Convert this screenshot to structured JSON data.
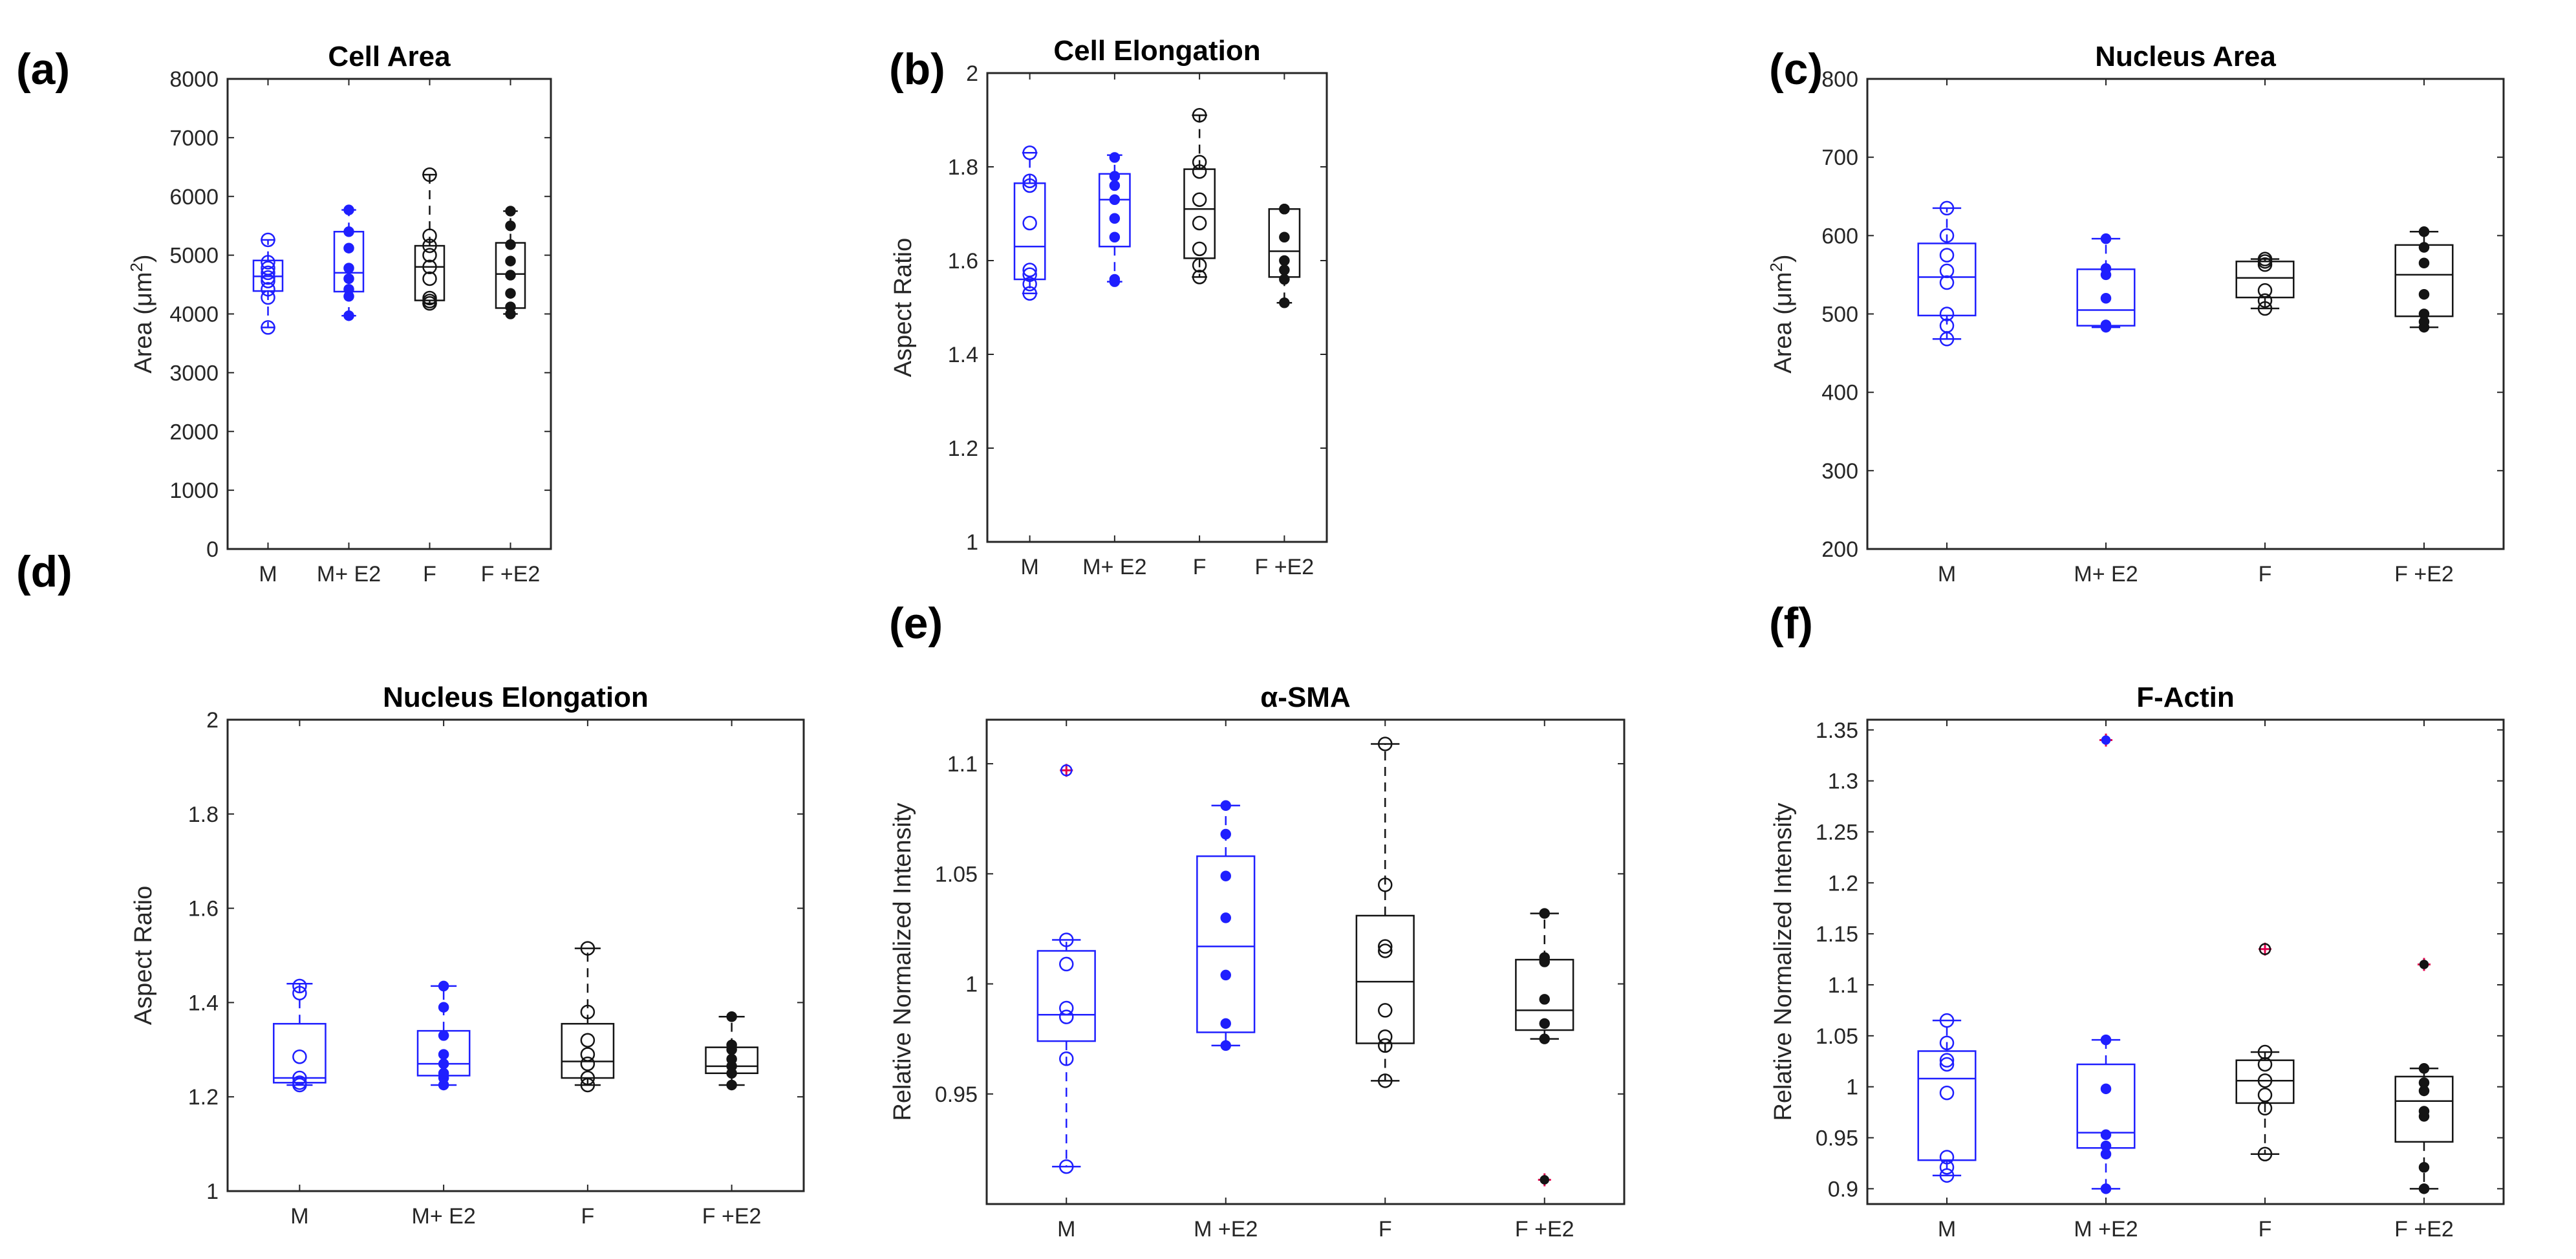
{
  "colors": {
    "blue": "#1f1fff",
    "black": "#141414",
    "outlier": "#e0004d",
    "axis": "#262626"
  },
  "panels": [
    {
      "label": "(a)",
      "chart_data": {
        "type": "box",
        "title": "Cell Area",
        "ylabel_main": "Area (μm",
        "ylabel_sup": "2",
        "ylabel_tail": ")",
        "ylim": [
          0,
          8000
        ],
        "yticks": [
          0,
          1000,
          2000,
          3000,
          4000,
          5000,
          6000,
          7000,
          8000
        ],
        "ytick_labels": [
          "0",
          "1000",
          "2000",
          "3000",
          "4000",
          "5000",
          "6000",
          "7000",
          "8000"
        ],
        "categories": [
          "M",
          "M+ E2",
          "F",
          "F +E2"
        ],
        "groups": [
          {
            "name": "M",
            "color": "blue",
            "filled": false,
            "q1": 4390,
            "median": 4640,
            "q3": 4910,
            "wlo": 3770,
            "whi": 5260,
            "points": [
              3770,
              4280,
              4420,
              4560,
              4620,
              4700,
              4780,
              4880,
              5260
            ],
            "outliers": []
          },
          {
            "name": "M+ E2",
            "color": "blue",
            "filled": true,
            "q1": 4380,
            "median": 4700,
            "q3": 5400,
            "wlo": 3970,
            "whi": 5770,
            "points": [
              3970,
              4300,
              4420,
              4600,
              4780,
              5120,
              5400,
              5770
            ],
            "outliers": []
          },
          {
            "name": "F",
            "color": "black",
            "filled": false,
            "q1": 4230,
            "median": 4800,
            "q3": 5160,
            "wlo": 4180,
            "whi": 6370,
            "points": [
              4180,
              4220,
              4270,
              4600,
              4800,
              5000,
              5160,
              5330,
              6370
            ],
            "outliers": []
          },
          {
            "name": "F +E2",
            "color": "black",
            "filled": true,
            "q1": 4100,
            "median": 4680,
            "q3": 5210,
            "wlo": 4000,
            "whi": 5750,
            "points": [
              4000,
              4120,
              4350,
              4660,
              4900,
              5180,
              5500,
              5750
            ],
            "outliers": []
          }
        ]
      }
    },
    {
      "label": "(b)",
      "chart_data": {
        "type": "box",
        "title": "Cell Elongation",
        "ylabel_main": "Aspect Ratio",
        "ylabel_sup": "",
        "ylabel_tail": "",
        "ylim": [
          1,
          2
        ],
        "yticks": [
          1,
          1.2,
          1.4,
          1.6,
          1.8,
          2
        ],
        "ytick_labels": [
          "1",
          "1.2",
          "1.4",
          "1.6",
          "1.8",
          "2"
        ],
        "categories": [
          "M",
          "M+ E2",
          "F",
          "F +E2"
        ],
        "groups": [
          {
            "name": "M",
            "color": "blue",
            "filled": false,
            "q1": 1.56,
            "median": 1.63,
            "q3": 1.765,
            "wlo": 1.53,
            "whi": 1.83,
            "points": [
              1.53,
              1.55,
              1.57,
              1.58,
              1.68,
              1.76,
              1.77,
              1.83
            ],
            "outliers": []
          },
          {
            "name": "M+ E2",
            "color": "blue",
            "filled": true,
            "q1": 1.63,
            "median": 1.73,
            "q3": 1.785,
            "wlo": 1.555,
            "whi": 1.825,
            "points": [
              1.555,
              1.56,
              1.65,
              1.69,
              1.73,
              1.76,
              1.78,
              1.82
            ],
            "outliers": []
          },
          {
            "name": "F",
            "color": "black",
            "filled": false,
            "q1": 1.605,
            "median": 1.71,
            "q3": 1.795,
            "wlo": 1.565,
            "whi": 1.91,
            "points": [
              1.565,
              1.59,
              1.625,
              1.68,
              1.73,
              1.79,
              1.81,
              1.91
            ],
            "outliers": []
          },
          {
            "name": "F +E2",
            "color": "black",
            "filled": true,
            "q1": 1.565,
            "median": 1.62,
            "q3": 1.71,
            "wlo": 1.51,
            "whi": 1.71,
            "points": [
              1.51,
              1.56,
              1.58,
              1.6,
              1.65,
              1.71,
              1.71
            ],
            "outliers": []
          }
        ]
      }
    },
    {
      "label": "(c)",
      "chart_data": {
        "type": "box",
        "title": "Nucleus Area",
        "ylabel_main": "Area (μm",
        "ylabel_sup": "2",
        "ylabel_tail": ")",
        "ylim": [
          200,
          800
        ],
        "yticks": [
          200,
          300,
          400,
          500,
          600,
          700,
          800
        ],
        "ytick_labels": [
          "200",
          "300",
          "400",
          "500",
          "600",
          "700",
          "800"
        ],
        "categories": [
          "M",
          "M+ E2",
          "F",
          "F +E2"
        ],
        "groups": [
          {
            "name": "M",
            "color": "blue",
            "filled": false,
            "q1": 498,
            "median": 547,
            "q3": 590,
            "wlo": 468,
            "whi": 635,
            "points": [
              468,
              485,
              500,
              540,
              555,
              575,
              600,
              635
            ],
            "outliers": []
          },
          {
            "name": "M+ E2",
            "color": "blue",
            "filled": true,
            "q1": 485,
            "median": 505,
            "q3": 557,
            "wlo": 483,
            "whi": 596,
            "points": [
              483,
              486,
              520,
              550,
              558,
              596
            ],
            "outliers": []
          },
          {
            "name": "F",
            "color": "black",
            "filled": false,
            "q1": 521,
            "median": 546,
            "q3": 567,
            "wlo": 507,
            "whi": 570,
            "points": [
              507,
              517,
              530,
              563,
              567,
              570
            ],
            "outliers": []
          },
          {
            "name": "F +E2",
            "color": "black",
            "filled": true,
            "q1": 497,
            "median": 550,
            "q3": 588,
            "wlo": 483,
            "whi": 605,
            "points": [
              483,
              490,
              500,
              525,
              565,
              585,
              605
            ],
            "outliers": []
          }
        ]
      }
    },
    {
      "label": "(d)",
      "chart_data": {
        "type": "box",
        "title": "Nucleus Elongation",
        "ylabel_main": "Aspect Ratio",
        "ylabel_sup": "",
        "ylabel_tail": "",
        "ylim": [
          1,
          2
        ],
        "yticks": [
          1,
          1.2,
          1.4,
          1.6,
          1.8,
          2
        ],
        "ytick_labels": [
          "1",
          "1.2",
          "1.4",
          "1.6",
          "1.8",
          "2"
        ],
        "categories": [
          "M",
          "M+ E2",
          "F",
          "F +E2"
        ],
        "groups": [
          {
            "name": "M",
            "color": "blue",
            "filled": false,
            "q1": 1.23,
            "median": 1.24,
            "q3": 1.355,
            "wlo": 1.225,
            "whi": 1.44,
            "points": [
              1.225,
              1.23,
              1.24,
              1.285,
              1.42,
              1.435
            ],
            "outliers": []
          },
          {
            "name": "M+ E2",
            "color": "blue",
            "filled": true,
            "q1": 1.245,
            "median": 1.27,
            "q3": 1.34,
            "wlo": 1.225,
            "whi": 1.435,
            "points": [
              1.225,
              1.24,
              1.25,
              1.27,
              1.29,
              1.33,
              1.39,
              1.435
            ],
            "outliers": []
          },
          {
            "name": "F",
            "color": "black",
            "filled": false,
            "q1": 1.24,
            "median": 1.275,
            "q3": 1.355,
            "wlo": 1.225,
            "whi": 1.515,
            "points": [
              1.225,
              1.24,
              1.27,
              1.29,
              1.32,
              1.38,
              1.515
            ],
            "outliers": []
          },
          {
            "name": "F +E2",
            "color": "black",
            "filled": true,
            "q1": 1.25,
            "median": 1.265,
            "q3": 1.305,
            "wlo": 1.225,
            "whi": 1.37,
            "points": [
              1.225,
              1.25,
              1.265,
              1.28,
              1.3,
              1.31,
              1.37
            ],
            "outliers": []
          }
        ]
      }
    },
    {
      "label": "(e)",
      "chart_data": {
        "type": "box",
        "title": "α-SMA",
        "ylabel_main": "Relative Normalized Intensity",
        "ylabel_sup": "",
        "ylabel_tail": "",
        "ylim": [
          0.9,
          1.12
        ],
        "yticks": [
          0.95,
          1,
          1.05,
          1.1
        ],
        "ytick_labels": [
          "0.95",
          "1",
          "1.05",
          "1.1"
        ],
        "categories": [
          "M",
          "M +E2",
          "F",
          "F +E2"
        ],
        "groups": [
          {
            "name": "M",
            "color": "blue",
            "filled": false,
            "q1": 0.974,
            "median": 0.986,
            "q3": 1.015,
            "wlo": 0.917,
            "whi": 1.02,
            "points": [
              0.917,
              0.966,
              0.985,
              0.989,
              1.009,
              1.02
            ],
            "outliers": [
              1.097
            ]
          },
          {
            "name": "M +E2",
            "color": "blue",
            "filled": true,
            "q1": 0.978,
            "median": 1.017,
            "q3": 1.058,
            "wlo": 0.972,
            "whi": 1.081,
            "points": [
              0.972,
              0.982,
              1.004,
              1.03,
              1.049,
              1.068,
              1.081
            ],
            "outliers": []
          },
          {
            "name": "F",
            "color": "black",
            "filled": false,
            "q1": 0.973,
            "median": 1.001,
            "q3": 1.031,
            "wlo": 0.956,
            "whi": 1.109,
            "points": [
              0.956,
              0.972,
              0.976,
              0.988,
              1.015,
              1.017,
              1.045,
              1.109
            ],
            "outliers": []
          },
          {
            "name": "F +E2",
            "color": "black",
            "filled": true,
            "q1": 0.979,
            "median": 0.988,
            "q3": 1.011,
            "wlo": 0.975,
            "whi": 1.032,
            "points": [
              0.975,
              0.982,
              0.993,
              1.01,
              1.012,
              1.032
            ],
            "outliers": [
              0.911
            ]
          }
        ]
      }
    },
    {
      "label": "(f)",
      "chart_data": {
        "type": "box",
        "title": "F-Actin",
        "ylabel_main": "Relative Normalized Intensity",
        "ylabel_sup": "",
        "ylabel_tail": "",
        "ylim": [
          0.885,
          1.36
        ],
        "yticks": [
          0.9,
          0.95,
          1,
          1.05,
          1.1,
          1.15,
          1.2,
          1.25,
          1.3,
          1.35
        ],
        "ytick_labels": [
          "0.9",
          "0.95",
          "1",
          "1.05",
          "1.1",
          "1.15",
          "1.2",
          "1.25",
          "1.3",
          "1.35"
        ],
        "categories": [
          "M",
          "M +E2",
          "F",
          "F +E2"
        ],
        "groups": [
          {
            "name": "M",
            "color": "blue",
            "filled": false,
            "q1": 0.928,
            "median": 1.008,
            "q3": 1.035,
            "wlo": 0.913,
            "whi": 1.065,
            "points": [
              0.913,
              0.921,
              0.931,
              0.994,
              1.022,
              1.026,
              1.043,
              1.065
            ],
            "outliers": []
          },
          {
            "name": "M +E2",
            "color": "blue",
            "filled": true,
            "q1": 0.94,
            "median": 0.955,
            "q3": 1.022,
            "wlo": 0.9,
            "whi": 1.046,
            "points": [
              0.9,
              0.934,
              0.942,
              0.953,
              0.998,
              1.046
            ],
            "outliers": [
              1.34
            ]
          },
          {
            "name": "F",
            "color": "black",
            "filled": false,
            "q1": 0.984,
            "median": 1.006,
            "q3": 1.026,
            "wlo": 0.934,
            "whi": 1.034,
            "points": [
              0.934,
              0.979,
              0.992,
              1.006,
              1.022,
              1.034
            ],
            "outliers": [
              1.135
            ]
          },
          {
            "name": "F +E2",
            "color": "black",
            "filled": true,
            "q1": 0.946,
            "median": 0.986,
            "q3": 1.01,
            "wlo": 0.9,
            "whi": 1.018,
            "points": [
              0.9,
              0.921,
              0.971,
              0.976,
              0.996,
              1.004,
              1.018
            ],
            "outliers": [
              1.12
            ]
          }
        ]
      }
    }
  ]
}
